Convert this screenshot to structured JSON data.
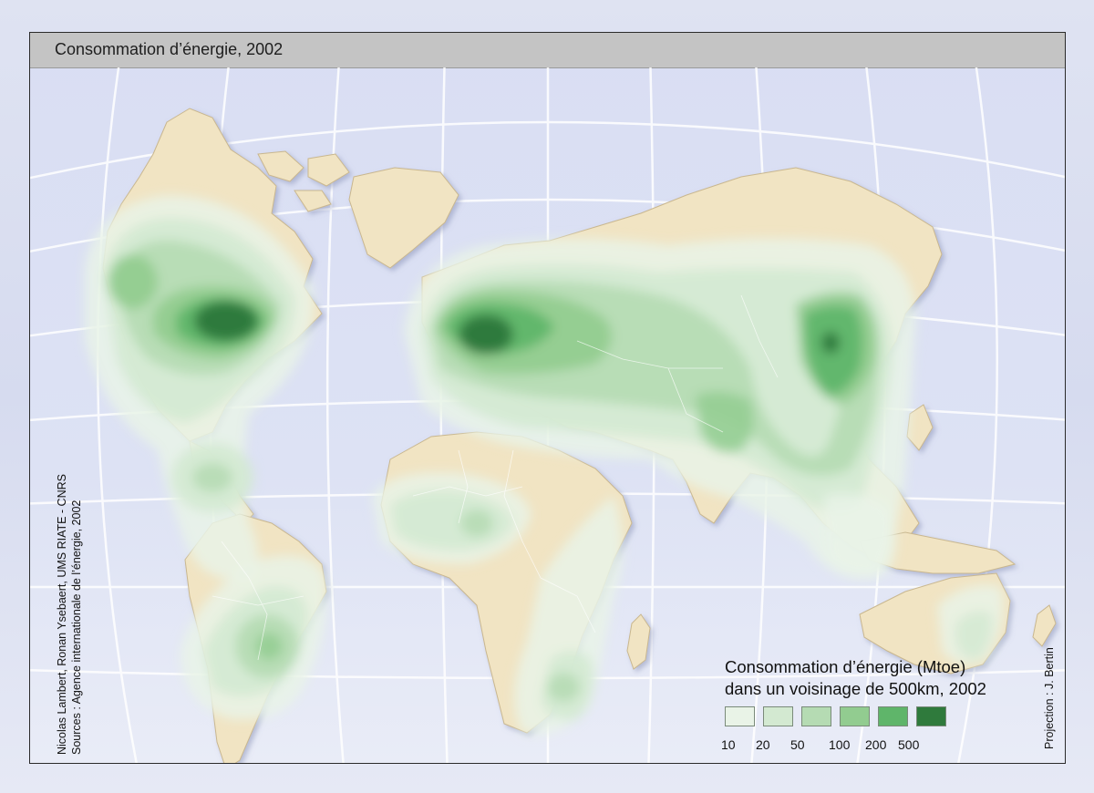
{
  "map": {
    "title": "Consommation d’énergie, 2002",
    "credits": [
      "Nicolas Lambert, Ronan Ysebaert, UMS RIATE - CNRS",
      "Sources : Agence internationale de l’énergie, 2002"
    ],
    "projection": "Projection : J. Bertin"
  },
  "legend": {
    "title_line1": "Consommation d’énergie (Mtoe)",
    "title_line2": "dans un voisinage de 500km, 2002",
    "classes": [
      {
        "label": "10",
        "color": "#e9f3e7"
      },
      {
        "label": "20",
        "color": "#d3e9d1"
      },
      {
        "label": "50",
        "color": "#b5dbb3"
      },
      {
        "label": "100",
        "color": "#92cc90"
      },
      {
        "label": "200",
        "color": "#5fb56a"
      },
      {
        "label": "500",
        "color": "#2f7a3c"
      }
    ]
  },
  "colors": {
    "land": "#f1e4c3",
    "land_stroke": "#c9b78f",
    "ocean": "#dbe0f3",
    "graticule": "#ffffff"
  }
}
